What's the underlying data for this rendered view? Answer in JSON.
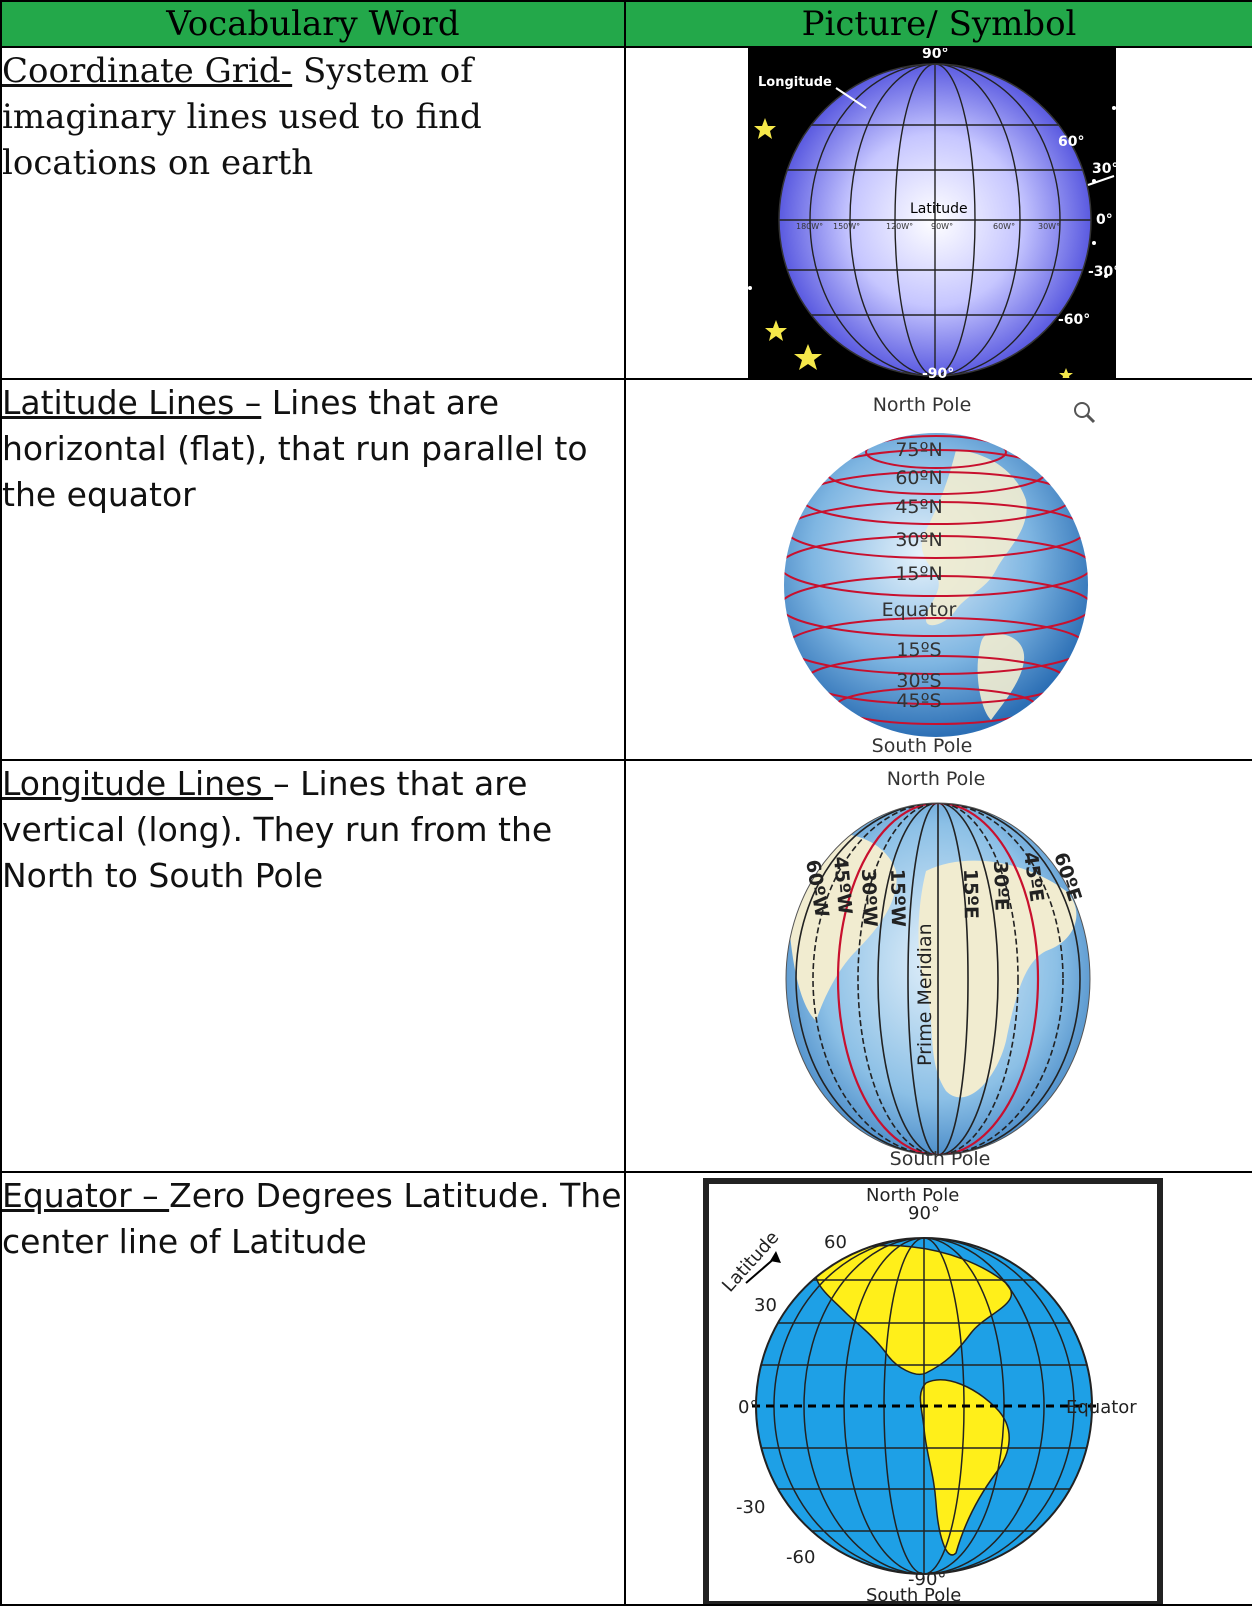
{
  "header": {
    "col_word": "Vocabulary Word",
    "col_picture": "Picture/ Symbol"
  },
  "rows": [
    {
      "term": "Coordinate Grid-",
      "definition": " System of imaginary lines used to find locations on earth",
      "image": {
        "longitude_label": "Longitude",
        "latitude_label": "Latitude",
        "top_label": "90°",
        "bottom_label": "-90°",
        "lat_labels": [
          "60°",
          "30°",
          "0°",
          "-30°",
          "-60°"
        ],
        "lon_labels": [
          "180W°",
          "150W°",
          "120W°",
          "90W°",
          "60W°",
          "30W°"
        ]
      }
    },
    {
      "term": "Latitude Lines –",
      "definition": " Lines that are horizontal (flat), that run parallel to the equator",
      "image": {
        "north": "North Pole",
        "south": "South Pole",
        "labels": [
          "75ºN",
          "60ºN",
          "45ºN",
          "30ºN",
          "15ºN",
          "Equator",
          "15ºS",
          "30ºS",
          "45ºS"
        ]
      }
    },
    {
      "term": "Longitude Lines ",
      "definition": "– Lines that are vertical (long). They run from the North to South Pole",
      "image": {
        "north": "North Pole",
        "south": "South Pole",
        "prime": "Prime Meridian",
        "west_labels": [
          "60ºW",
          "45ºW",
          "30ºW",
          "15ºW"
        ],
        "east_labels": [
          "15ºE",
          "30ºE",
          "45ºE",
          "60ºE"
        ]
      }
    },
    {
      "term": "Equator – ",
      "definition": "Zero Degrees Latitude. The center line of Latitude",
      "image": {
        "north": "North Pole",
        "south": "South Pole",
        "top_deg": "90°",
        "bottom_deg": "-90°",
        "equator": "Equator",
        "latitude": "Latitude",
        "marks": [
          "60",
          "30",
          "0°",
          "-30",
          "-60"
        ]
      }
    }
  ]
}
